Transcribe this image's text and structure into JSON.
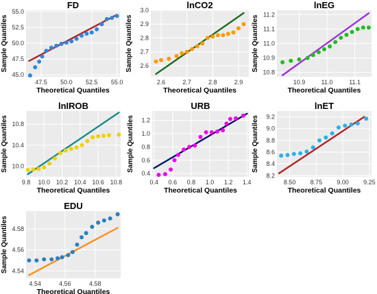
{
  "chart_data": [
    {
      "type": "scatter",
      "title": "FD",
      "xlabel": "Theoretical Quantiles",
      "ylabel": "Sample Quantiles",
      "xlim": [
        46.0,
        55.3
      ],
      "ylim": [
        44.7,
        55.2
      ],
      "xticks": [
        "47.5",
        "50.0",
        "52.5",
        "55.0"
      ],
      "yticks": [
        "45.0",
        "47.5",
        "50.0",
        "52.5",
        "55.0"
      ],
      "point_color": "#2f86dd",
      "line_color": "#b22222",
      "reference_line": {
        "x": [
          46.3,
          55.0
        ],
        "y": [
          47.2,
          54.5
        ]
      },
      "series": [
        {
          "x": [
            46.4,
            46.9,
            47.3,
            47.6,
            48.0,
            48.5,
            49.0,
            49.5,
            50.0,
            50.5,
            51.0,
            51.5,
            52.0,
            52.5,
            53.0,
            53.5,
            54.0,
            54.5,
            55.0
          ],
          "y": [
            44.9,
            46.2,
            47.1,
            47.9,
            48.8,
            49.3,
            49.6,
            49.9,
            50.1,
            50.3,
            50.7,
            51.2,
            51.5,
            51.7,
            52.2,
            53.0,
            53.8,
            54.0,
            54.3
          ]
        }
      ]
    },
    {
      "type": "scatter",
      "title": "lnCO2",
      "xlabel": "Theoretical Quantiles",
      "ylabel": "Sample Quantiles",
      "xlim": [
        2.56,
        2.94
      ],
      "ylim": [
        2.52,
        3.0
      ],
      "xticks": [
        "2.6",
        "2.7",
        "2.8",
        "2.9"
      ],
      "yticks": [
        "2.6",
        "2.7",
        "2.8",
        "2.9",
        "3.0"
      ],
      "point_color": "#ff9900",
      "line_color": "#1e6a1e",
      "reference_line": {
        "x": [
          2.58,
          2.92
        ],
        "y": [
          2.54,
          2.98
        ]
      },
      "series": [
        {
          "x": [
            2.58,
            2.6,
            2.63,
            2.66,
            2.68,
            2.7,
            2.72,
            2.74,
            2.76,
            2.78,
            2.8,
            2.82,
            2.84,
            2.86,
            2.88,
            2.9,
            2.92
          ],
          "y": [
            2.63,
            2.64,
            2.65,
            2.67,
            2.69,
            2.7,
            2.72,
            2.74,
            2.76,
            2.8,
            2.81,
            2.82,
            2.82,
            2.83,
            2.84,
            2.87,
            2.9
          ]
        }
      ]
    },
    {
      "type": "scatter",
      "title": "lnEG",
      "xlabel": "Theoretical Quantiles",
      "ylabel": "Sample Quantiles",
      "xlim": [
        10.82,
        11.16
      ],
      "ylim": [
        10.77,
        11.23
      ],
      "xticks": [
        "10.9",
        "11.0",
        "11.1"
      ],
      "yticks": [
        "10.8",
        "10.9",
        "11.0",
        "11.1",
        "11.2"
      ],
      "point_color": "#22bb22",
      "line_color": "#9b30d9",
      "reference_line": {
        "x": [
          10.84,
          11.15
        ],
        "y": [
          10.78,
          11.21
        ]
      },
      "series": [
        {
          "x": [
            10.84,
            10.87,
            10.9,
            10.93,
            10.95,
            10.97,
            10.99,
            11.01,
            11.03,
            11.05,
            11.07,
            11.09,
            11.11,
            11.13,
            11.15
          ],
          "y": [
            10.87,
            10.88,
            10.89,
            10.9,
            10.92,
            10.94,
            10.96,
            10.98,
            11.01,
            11.04,
            11.06,
            11.08,
            11.1,
            11.11,
            11.11
          ]
        }
      ]
    },
    {
      "type": "scatter",
      "title": "lnIROB",
      "xlabel": "Theoretical Quantiles",
      "ylabel": "Sample Quantiles",
      "xlim": [
        9.8,
        10.85
      ],
      "ylim": [
        9.8,
        11.05
      ],
      "xticks": [
        "9.8",
        "10.0",
        "10.2",
        "10.4",
        "10.6",
        "10.8"
      ],
      "yticks": [
        "10.0",
        "10.4",
        "10.8"
      ],
      "point_color": "#f0d000",
      "line_color": "#178a8a",
      "reference_line": {
        "x": [
          9.82,
          10.83
        ],
        "y": [
          9.85,
          11.02
        ]
      },
      "series": [
        {
          "x": [
            9.82,
            9.88,
            9.94,
            10.0,
            10.06,
            10.12,
            10.18,
            10.24,
            10.3,
            10.36,
            10.42,
            10.48,
            10.54,
            10.6,
            10.66,
            10.72,
            10.83
          ],
          "y": [
            9.93,
            9.94,
            9.95,
            9.98,
            10.05,
            10.15,
            10.25,
            10.3,
            10.33,
            10.36,
            10.4,
            10.48,
            10.55,
            10.57,
            10.58,
            10.59,
            10.6
          ]
        }
      ]
    },
    {
      "type": "scatter",
      "title": "URB",
      "xlabel": "Theoretical Quantiles",
      "ylabel": "Sample Quantiles",
      "xlim": [
        0.38,
        1.42
      ],
      "ylim": [
        0.35,
        1.34
      ],
      "xticks": [
        "0.4",
        "0.6",
        "0.8",
        "1.0",
        "1.2",
        "1.4"
      ],
      "yticks": [
        "0.4",
        "0.6",
        "0.8",
        "1.0",
        "1.2"
      ],
      "point_color": "#ee00ee",
      "line_color": "#001166",
      "reference_line": {
        "x": [
          0.4,
          1.4
        ],
        "y": [
          0.48,
          1.3
        ]
      },
      "series": [
        {
          "x": [
            0.45,
            0.52,
            0.58,
            0.62,
            0.66,
            0.72,
            0.78,
            0.84,
            0.9,
            0.96,
            1.02,
            1.08,
            1.14,
            1.18,
            1.22,
            1.28,
            1.36
          ],
          "y": [
            0.38,
            0.39,
            0.46,
            0.6,
            0.68,
            0.76,
            0.8,
            0.82,
            0.95,
            1.02,
            1.02,
            1.03,
            1.05,
            1.15,
            1.22,
            1.23,
            1.27
          ]
        }
      ]
    },
    {
      "type": "scatter",
      "title": "lnET",
      "xlabel": "Theoretical Quantiles",
      "ylabel": "Sample Quantiles",
      "xlim": [
        8.38,
        9.27
      ],
      "ylim": [
        8.18,
        9.3
      ],
      "xticks": [
        "8.50",
        "8.75",
        "9.00",
        "9.25"
      ],
      "yticks": [
        "8.2",
        "8.4",
        "8.6",
        "8.8",
        "9.0",
        "9.2"
      ],
      "point_color": "#2ab0e8",
      "line_color": "#b22222",
      "reference_line": {
        "x": [
          8.4,
          9.2
        ],
        "y": [
          8.24,
          9.2
        ]
      },
      "series": [
        {
          "x": [
            8.42,
            8.48,
            8.54,
            8.6,
            8.66,
            8.72,
            8.78,
            8.84,
            8.9,
            8.96,
            9.02,
            9.08,
            9.14,
            9.22
          ],
          "y": [
            8.54,
            8.55,
            8.57,
            8.58,
            8.61,
            8.68,
            8.8,
            8.85,
            8.92,
            9.02,
            9.05,
            9.07,
            9.09,
            9.17
          ]
        }
      ]
    },
    {
      "type": "scatter",
      "title": "EDU",
      "xlabel": "Theoretical Quantiles",
      "ylabel": "Sample Quantiles",
      "xlim": [
        4.534,
        4.597
      ],
      "ylim": [
        4.533,
        4.597
      ],
      "xticks": [
        "4.54",
        "4.56",
        "4.58"
      ],
      "yticks": [
        "4.54",
        "4.56",
        "4.58"
      ],
      "point_color": "#2a7fbf",
      "line_color": "#ff8c1a",
      "reference_line": {
        "x": [
          4.536,
          4.595
        ],
        "y": [
          4.536,
          4.581
        ]
      },
      "series": [
        {
          "x": [
            4.536,
            4.541,
            4.546,
            4.551,
            4.555,
            4.558,
            4.562,
            4.565,
            4.568,
            4.571,
            4.574,
            4.578,
            4.582,
            4.586,
            4.59,
            4.595
          ],
          "y": [
            4.55,
            4.55,
            4.551,
            4.551,
            4.552,
            4.553,
            4.555,
            4.558,
            4.565,
            4.572,
            4.576,
            4.582,
            4.586,
            4.588,
            4.59,
            4.594
          ]
        }
      ]
    }
  ]
}
